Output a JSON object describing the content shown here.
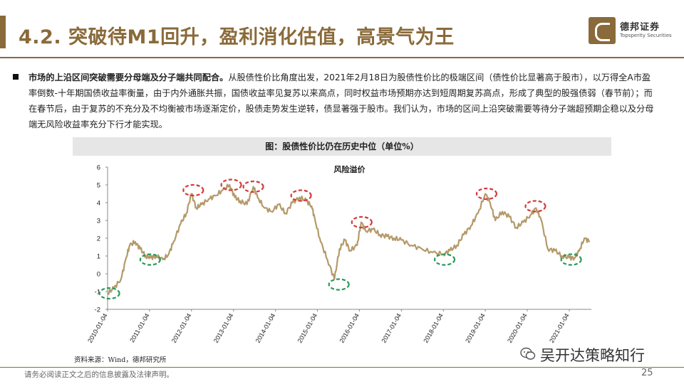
{
  "header": {
    "title": "4.2. 突破待M1回升，盈利消化估值，高景气为王",
    "logo_cn": "德邦证券",
    "logo_en": "Topsperity Securities"
  },
  "body": {
    "lead": "市场的上沿区间突破需要分母端及分子端共同配合。",
    "text": "从股债性价比角度出发，2021年2月18日为股债性价比的极端区间（债性价比显著高于股市），以万得全A市盈率倒数-十年期国债收益率衡量，由于内外通胀共振，国债收益率见复苏以来高点，同时权益市场预期亦达到短周期复苏高点，形成了典型的股强债弱（春节前）；而在春节后，由于复苏的不充分及不均衡被市场逐渐定价，股债走势发生逆转，债显著强于股市。我们认为，市场的区间上沿突破需要等待分子端超预期企稳以及分母端无风险收益率充分下行才能实现。"
  },
  "figure": {
    "caption": "图：股债性价比仍在历史中位（单位%）",
    "source": "资料来源：Wind，德邦研究所"
  },
  "chart_data": {
    "type": "line",
    "title": "风险溢价",
    "xlabel": "",
    "ylabel": "",
    "ylim": [
      -2,
      6
    ],
    "yticks": [
      -2,
      -1,
      0,
      1,
      2,
      3,
      4,
      5,
      6
    ],
    "xticks": [
      "2010-01-04",
      "2011-01-04",
      "2012-01-04",
      "2013-01-04",
      "2014-01-04",
      "2015-01-04",
      "2016-01-04",
      "2017-01-04",
      "2018-01-04",
      "2019-01-04",
      "2020-01-04",
      "2021-01-04"
    ],
    "grid": false,
    "line_color": "#b49a6a",
    "series": [
      {
        "values": [
          {
            "x": "2010-01-04",
            "y": -1.1
          },
          {
            "x": "2010-03-01",
            "y": -0.8
          },
          {
            "x": "2010-05-01",
            "y": -0.3
          },
          {
            "x": "2010-06-15",
            "y": 0.9
          },
          {
            "x": "2010-07-15",
            "y": 1.6
          },
          {
            "x": "2010-09-01",
            "y": 1.8
          },
          {
            "x": "2010-10-15",
            "y": 1.4
          },
          {
            "x": "2010-12-01",
            "y": 1.0
          },
          {
            "x": "2011-01-15",
            "y": 0.9
          },
          {
            "x": "2011-03-01",
            "y": 1.0
          },
          {
            "x": "2011-05-01",
            "y": 0.8
          },
          {
            "x": "2011-06-20",
            "y": 1.1
          },
          {
            "x": "2011-08-01",
            "y": 1.8
          },
          {
            "x": "2011-10-01",
            "y": 2.8
          },
          {
            "x": "2011-11-20",
            "y": 3.4
          },
          {
            "x": "2012-01-04",
            "y": 4.5
          },
          {
            "x": "2012-02-15",
            "y": 3.7
          },
          {
            "x": "2012-04-01",
            "y": 3.9
          },
          {
            "x": "2012-06-01",
            "y": 4.2
          },
          {
            "x": "2012-08-01",
            "y": 4.4
          },
          {
            "x": "2012-10-01",
            "y": 4.7
          },
          {
            "x": "2012-12-01",
            "y": 5.0
          },
          {
            "x": "2013-01-15",
            "y": 4.3
          },
          {
            "x": "2013-03-01",
            "y": 4.1
          },
          {
            "x": "2013-05-01",
            "y": 3.9
          },
          {
            "x": "2013-06-25",
            "y": 4.9
          },
          {
            "x": "2013-08-01",
            "y": 4.3
          },
          {
            "x": "2013-10-01",
            "y": 3.7
          },
          {
            "x": "2013-12-01",
            "y": 3.5
          },
          {
            "x": "2014-02-01",
            "y": 3.9
          },
          {
            "x": "2014-04-01",
            "y": 3.4
          },
          {
            "x": "2014-06-01",
            "y": 4.0
          },
          {
            "x": "2014-08-01",
            "y": 4.3
          },
          {
            "x": "2014-10-01",
            "y": 4.1
          },
          {
            "x": "2014-11-15",
            "y": 3.8
          },
          {
            "x": "2014-12-15",
            "y": 3.0
          },
          {
            "x": "2015-02-01",
            "y": 1.8
          },
          {
            "x": "2015-04-01",
            "y": 0.8
          },
          {
            "x": "2015-06-01",
            "y": -0.3
          },
          {
            "x": "2015-07-15",
            "y": 1.4
          },
          {
            "x": "2015-09-01",
            "y": 1.9
          },
          {
            "x": "2015-10-15",
            "y": 1.3
          },
          {
            "x": "2015-12-15",
            "y": 1.6
          },
          {
            "x": "2016-01-20",
            "y": 2.9
          },
          {
            "x": "2016-03-01",
            "y": 2.4
          },
          {
            "x": "2016-05-01",
            "y": 2.5
          },
          {
            "x": "2016-07-01",
            "y": 2.2
          },
          {
            "x": "2016-09-01",
            "y": 2.1
          },
          {
            "x": "2016-11-01",
            "y": 2.0
          },
          {
            "x": "2017-01-04",
            "y": 1.9
          },
          {
            "x": "2017-04-01",
            "y": 1.6
          },
          {
            "x": "2017-07-01",
            "y": 1.4
          },
          {
            "x": "2017-10-01",
            "y": 1.2
          },
          {
            "x": "2018-01-04",
            "y": 1.1
          },
          {
            "x": "2018-03-01",
            "y": 1.3
          },
          {
            "x": "2018-05-01",
            "y": 1.6
          },
          {
            "x": "2018-07-01",
            "y": 2.2
          },
          {
            "x": "2018-09-01",
            "y": 2.7
          },
          {
            "x": "2018-11-01",
            "y": 3.4
          },
          {
            "x": "2019-01-04",
            "y": 4.5
          },
          {
            "x": "2019-02-15",
            "y": 4.0
          },
          {
            "x": "2019-04-01",
            "y": 3.0
          },
          {
            "x": "2019-06-01",
            "y": 3.5
          },
          {
            "x": "2019-08-01",
            "y": 3.2
          },
          {
            "x": "2019-10-01",
            "y": 2.6
          },
          {
            "x": "2019-12-01",
            "y": 2.9
          },
          {
            "x": "2020-02-01",
            "y": 3.3
          },
          {
            "x": "2020-03-20",
            "y": 3.7
          },
          {
            "x": "2020-05-01",
            "y": 3.1
          },
          {
            "x": "2020-07-01",
            "y": 1.4
          },
          {
            "x": "2020-09-01",
            "y": 1.3
          },
          {
            "x": "2020-11-01",
            "y": 1.0
          },
          {
            "x": "2021-01-04",
            "y": 0.9
          },
          {
            "x": "2021-02-18",
            "y": 0.9
          },
          {
            "x": "2021-04-01",
            "y": 1.3
          },
          {
            "x": "2021-05-15",
            "y": 2.0
          },
          {
            "x": "2021-07-01",
            "y": 1.8
          }
        ]
      }
    ],
    "annotations": [
      {
        "x": "2010-01-20",
        "y": -1.1,
        "color": "#2a9a5a"
      },
      {
        "x": "2011-01-10",
        "y": 0.8,
        "color": "#2a9a5a"
      },
      {
        "x": "2012-01-20",
        "y": 4.7,
        "color": "#d63a3a"
      },
      {
        "x": "2012-12-15",
        "y": 5.0,
        "color": "#d63a3a"
      },
      {
        "x": "2013-06-25",
        "y": 4.9,
        "color": "#d63a3a"
      },
      {
        "x": "2014-08-15",
        "y": 4.4,
        "color": "#d63a3a"
      },
      {
        "x": "2015-07-10",
        "y": -0.6,
        "color": "#2a9a5a"
      },
      {
        "x": "2016-01-25",
        "y": 2.9,
        "color": "#d63a3a"
      },
      {
        "x": "2018-01-15",
        "y": 0.8,
        "color": "#2a9a5a"
      },
      {
        "x": "2019-01-15",
        "y": 4.5,
        "color": "#d63a3a"
      },
      {
        "x": "2020-03-15",
        "y": 3.8,
        "color": "#d63a3a"
      },
      {
        "x": "2021-01-20",
        "y": 0.8,
        "color": "#2a9a5a"
      }
    ]
  },
  "footer": {
    "disclaimer": "请务必阅读正文之后的信息披露及法律声明。",
    "page": "25",
    "watermark": "吴开达策略知行"
  }
}
